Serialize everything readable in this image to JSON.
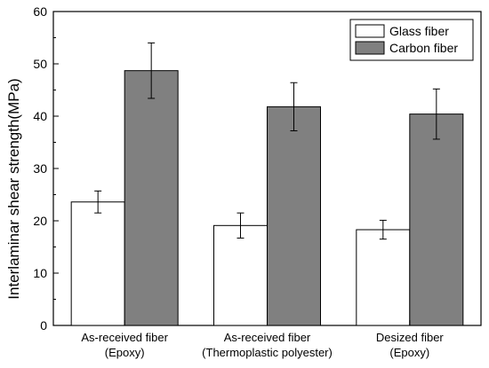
{
  "chart_data": {
    "type": "bar",
    "title": "",
    "xlabel": "",
    "ylabel": "Interlaminar shear strength(MPa)",
    "ylim": [
      0,
      60
    ],
    "yticks": [
      0,
      10,
      20,
      30,
      40,
      50,
      60
    ],
    "categories": [
      [
        "As-received fiber",
        "(Epoxy)"
      ],
      [
        "As-received fiber",
        "(Thermoplastic polyester)"
      ],
      [
        "Desized fiber",
        "(Epoxy)"
      ]
    ],
    "series": [
      {
        "name": "Glass fiber",
        "color": "#ffffff",
        "values": [
          23.6,
          19.1,
          18.3
        ],
        "errors": [
          2.1,
          2.4,
          1.8
        ]
      },
      {
        "name": "Carbon fiber",
        "color": "#808080",
        "values": [
          48.7,
          41.8,
          40.4
        ],
        "errors": [
          5.3,
          4.6,
          4.8
        ]
      }
    ],
    "grid": false,
    "legend_position": "top-right"
  }
}
